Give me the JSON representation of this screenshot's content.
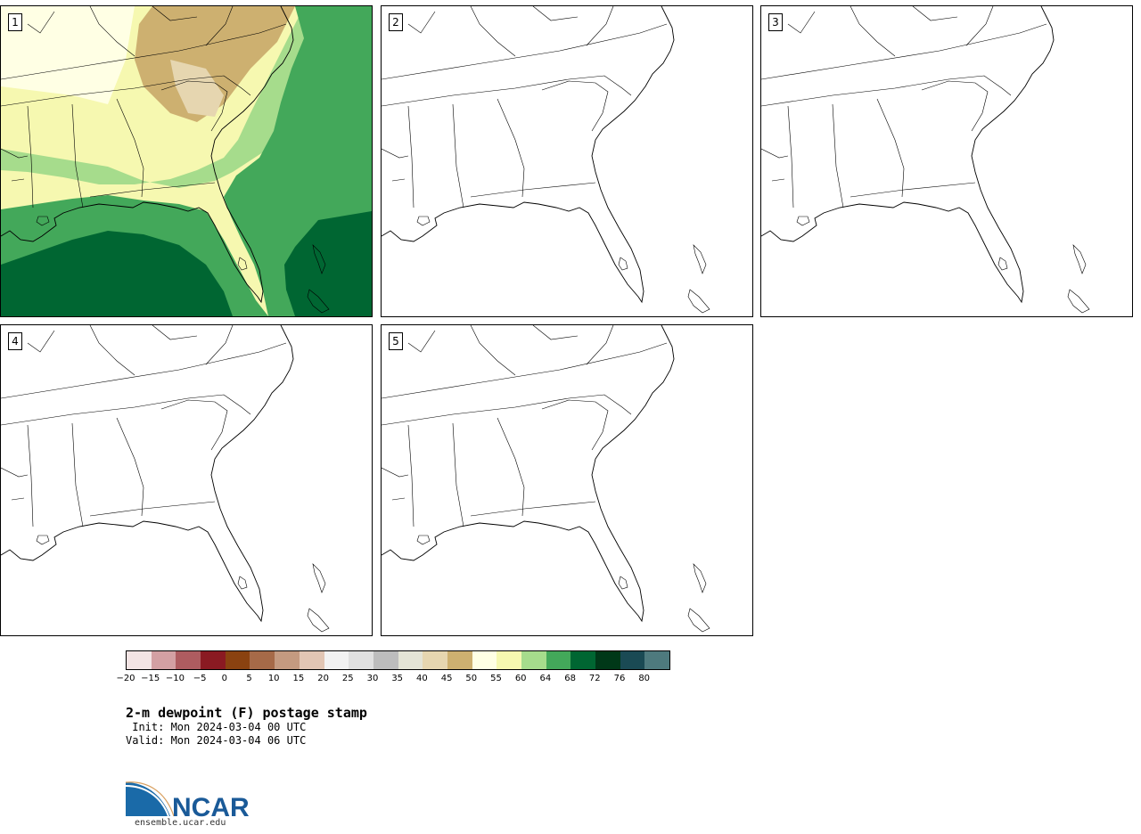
{
  "panels": [
    {
      "number": "1",
      "filled": true
    },
    {
      "number": "2",
      "filled": false
    },
    {
      "number": "3",
      "filled": false
    },
    {
      "number": "4",
      "filled": false
    },
    {
      "number": "5",
      "filled": false
    }
  ],
  "colorbar": {
    "colors": [
      "#f3e4e4",
      "#d3a0a3",
      "#ae5c60",
      "#8a1a22",
      "#8a4210",
      "#a66a48",
      "#c49a80",
      "#e2c6b4",
      "#f2f2f2",
      "#e0e0e0",
      "#bdbdbd",
      "#e4e4d6",
      "#e6d6b0",
      "#cdb070",
      "#ffffe4",
      "#f6f8b0",
      "#a6dc8c",
      "#43a85a",
      "#006632",
      "#003818",
      "#1a4a54",
      "#4e7a7e"
    ],
    "tick_labels": [
      "−20",
      "−15",
      "−10",
      "−5",
      "0",
      "5",
      "10",
      "15",
      "20",
      "25",
      "30",
      "35",
      "40",
      "45",
      "50",
      "55",
      "60",
      "64",
      "68",
      "72",
      "76",
      "80"
    ]
  },
  "title": "2-m dewpoint (F) postage stamp",
  "init": " Init: Mon 2024-03-04 00 UTC",
  "valid": "Valid: Mon 2024-03-04 06 UTC",
  "logo": {
    "text": "NCAR",
    "url": "ensemble.ucar.edu"
  }
}
